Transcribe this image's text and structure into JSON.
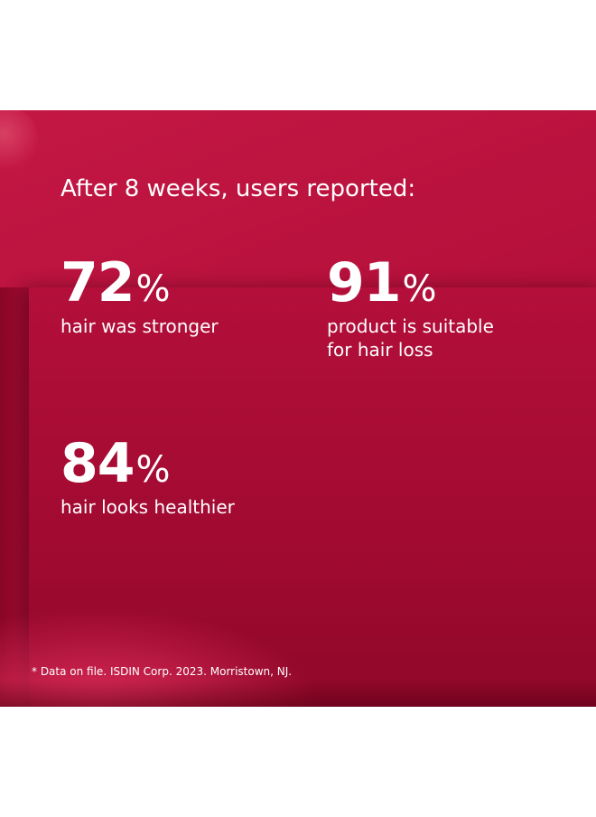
{
  "heading": "After 8 weeks, users reported:",
  "stats": [
    {
      "number": "72",
      "unit": "%",
      "label_lines": [
        "hair was stronger"
      ]
    },
    {
      "number": "91",
      "unit": "%",
      "label_lines": [
        "product is suitable",
        "for hair loss"
      ]
    },
    {
      "number": "84",
      "unit": "%",
      "label_lines": [
        "hair looks healthier"
      ]
    }
  ],
  "footnote": "* Data on file. ISDIN Corp. 2023. Morristown, NJ."
}
